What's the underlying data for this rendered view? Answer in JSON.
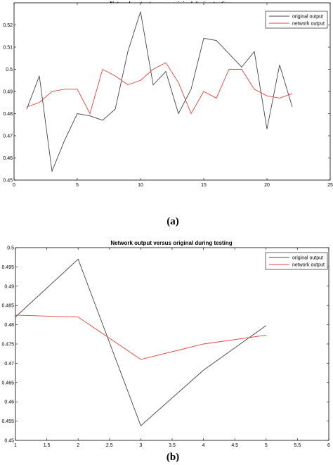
{
  "chart_data": [
    {
      "type": "line",
      "title": "Network output versus original during testing",
      "caption": "(a)",
      "xlabel": "",
      "ylabel": "",
      "xlim": [
        0,
        25
      ],
      "ylim": [
        0.45,
        0.53
      ],
      "xticks": [
        0,
        5,
        10,
        15,
        20,
        25
      ],
      "yticks": [
        0.45,
        0.46,
        0.47,
        0.48,
        0.49,
        0.5,
        0.51,
        0.52
      ],
      "ytick_labels": [
        "0.45",
        "0.46",
        "0.47",
        "0.48",
        "0.49",
        "0.5",
        "0.51",
        "0.52"
      ],
      "legend_position": "top-right",
      "grid": false,
      "series": [
        {
          "name": "original output",
          "color": "#444444",
          "x": [
            1,
            2,
            3,
            4,
            5,
            6,
            7,
            8,
            9,
            10,
            11,
            12,
            13,
            14,
            15,
            16,
            17,
            18,
            19,
            20,
            21,
            22
          ],
          "values": [
            0.482,
            0.497,
            0.454,
            0.468,
            0.48,
            0.479,
            0.477,
            0.482,
            0.508,
            0.526,
            0.493,
            0.499,
            0.48,
            0.491,
            0.514,
            0.513,
            0.507,
            0.501,
            0.508,
            0.473,
            0.502,
            0.483
          ]
        },
        {
          "name": "network output",
          "color": "#e8413a",
          "x": [
            1,
            2,
            3,
            4,
            5,
            6,
            7,
            8,
            9,
            10,
            11,
            12,
            13,
            14,
            15,
            16,
            17,
            18,
            19,
            20,
            21,
            22
          ],
          "values": [
            0.483,
            0.485,
            0.49,
            0.491,
            0.491,
            0.48,
            0.5,
            0.497,
            0.493,
            0.495,
            0.5,
            0.503,
            0.494,
            0.48,
            0.49,
            0.487,
            0.5,
            0.5,
            0.491,
            0.488,
            0.487,
            0.489
          ]
        }
      ]
    },
    {
      "type": "line",
      "title": "Network output versus original during testing",
      "caption": "(b)",
      "xlabel": "",
      "ylabel": "",
      "xlim": [
        1,
        6
      ],
      "ylim": [
        0.45,
        0.5
      ],
      "xticks": [
        1,
        1.5,
        2,
        2.5,
        3,
        3.5,
        4,
        4.5,
        5,
        5.5,
        6
      ],
      "yticks": [
        0.45,
        0.455,
        0.46,
        0.465,
        0.47,
        0.475,
        0.48,
        0.485,
        0.49,
        0.495,
        0.5
      ],
      "ytick_labels": [
        "0.45",
        "0.455",
        "0.46",
        "0.465",
        "0.47",
        "0.475",
        "0.48",
        "0.485",
        "0.49",
        "0.495",
        "0.5"
      ],
      "legend_position": "top-right",
      "grid": false,
      "series": [
        {
          "name": "original output",
          "color": "#444444",
          "x": [
            1,
            2,
            3,
            4,
            5
          ],
          "values": [
            0.482,
            0.497,
            0.4538,
            0.4682,
            0.4798
          ]
        },
        {
          "name": "network output",
          "color": "#e8413a",
          "x": [
            1,
            2,
            3,
            4,
            5
          ],
          "values": [
            0.4825,
            0.482,
            0.471,
            0.475,
            0.4773
          ]
        }
      ]
    }
  ]
}
